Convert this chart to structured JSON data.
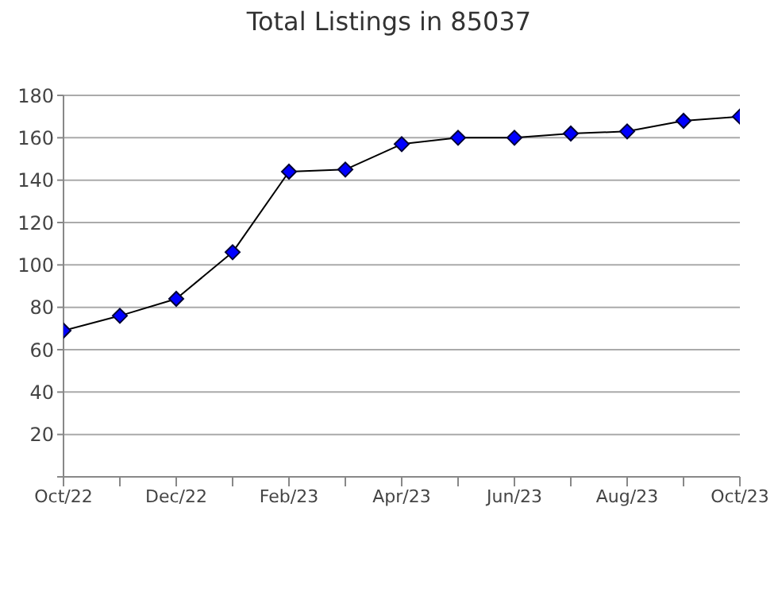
{
  "chart_data": {
    "type": "line",
    "title": "Total Listings in 85037",
    "categories": [
      "Oct/22",
      null,
      "Dec/22",
      null,
      "Feb/23",
      null,
      "Apr/23",
      null,
      "Jun/23",
      null,
      "Aug/23",
      null,
      "Oct/23"
    ],
    "series": [
      {
        "color": "#0000ff",
        "values": [
          69,
          76,
          84,
          106,
          144,
          145,
          157,
          160,
          160,
          162,
          163,
          168,
          170
        ]
      }
    ],
    "ylim": [
      0,
      180
    ],
    "yticks": [
      {
        "value": 0,
        "label": null
      },
      20,
      40,
      60,
      80,
      100,
      120,
      140,
      160,
      180
    ],
    "grid": "y",
    "marker": "diamond",
    "line_style": "solid"
  }
}
